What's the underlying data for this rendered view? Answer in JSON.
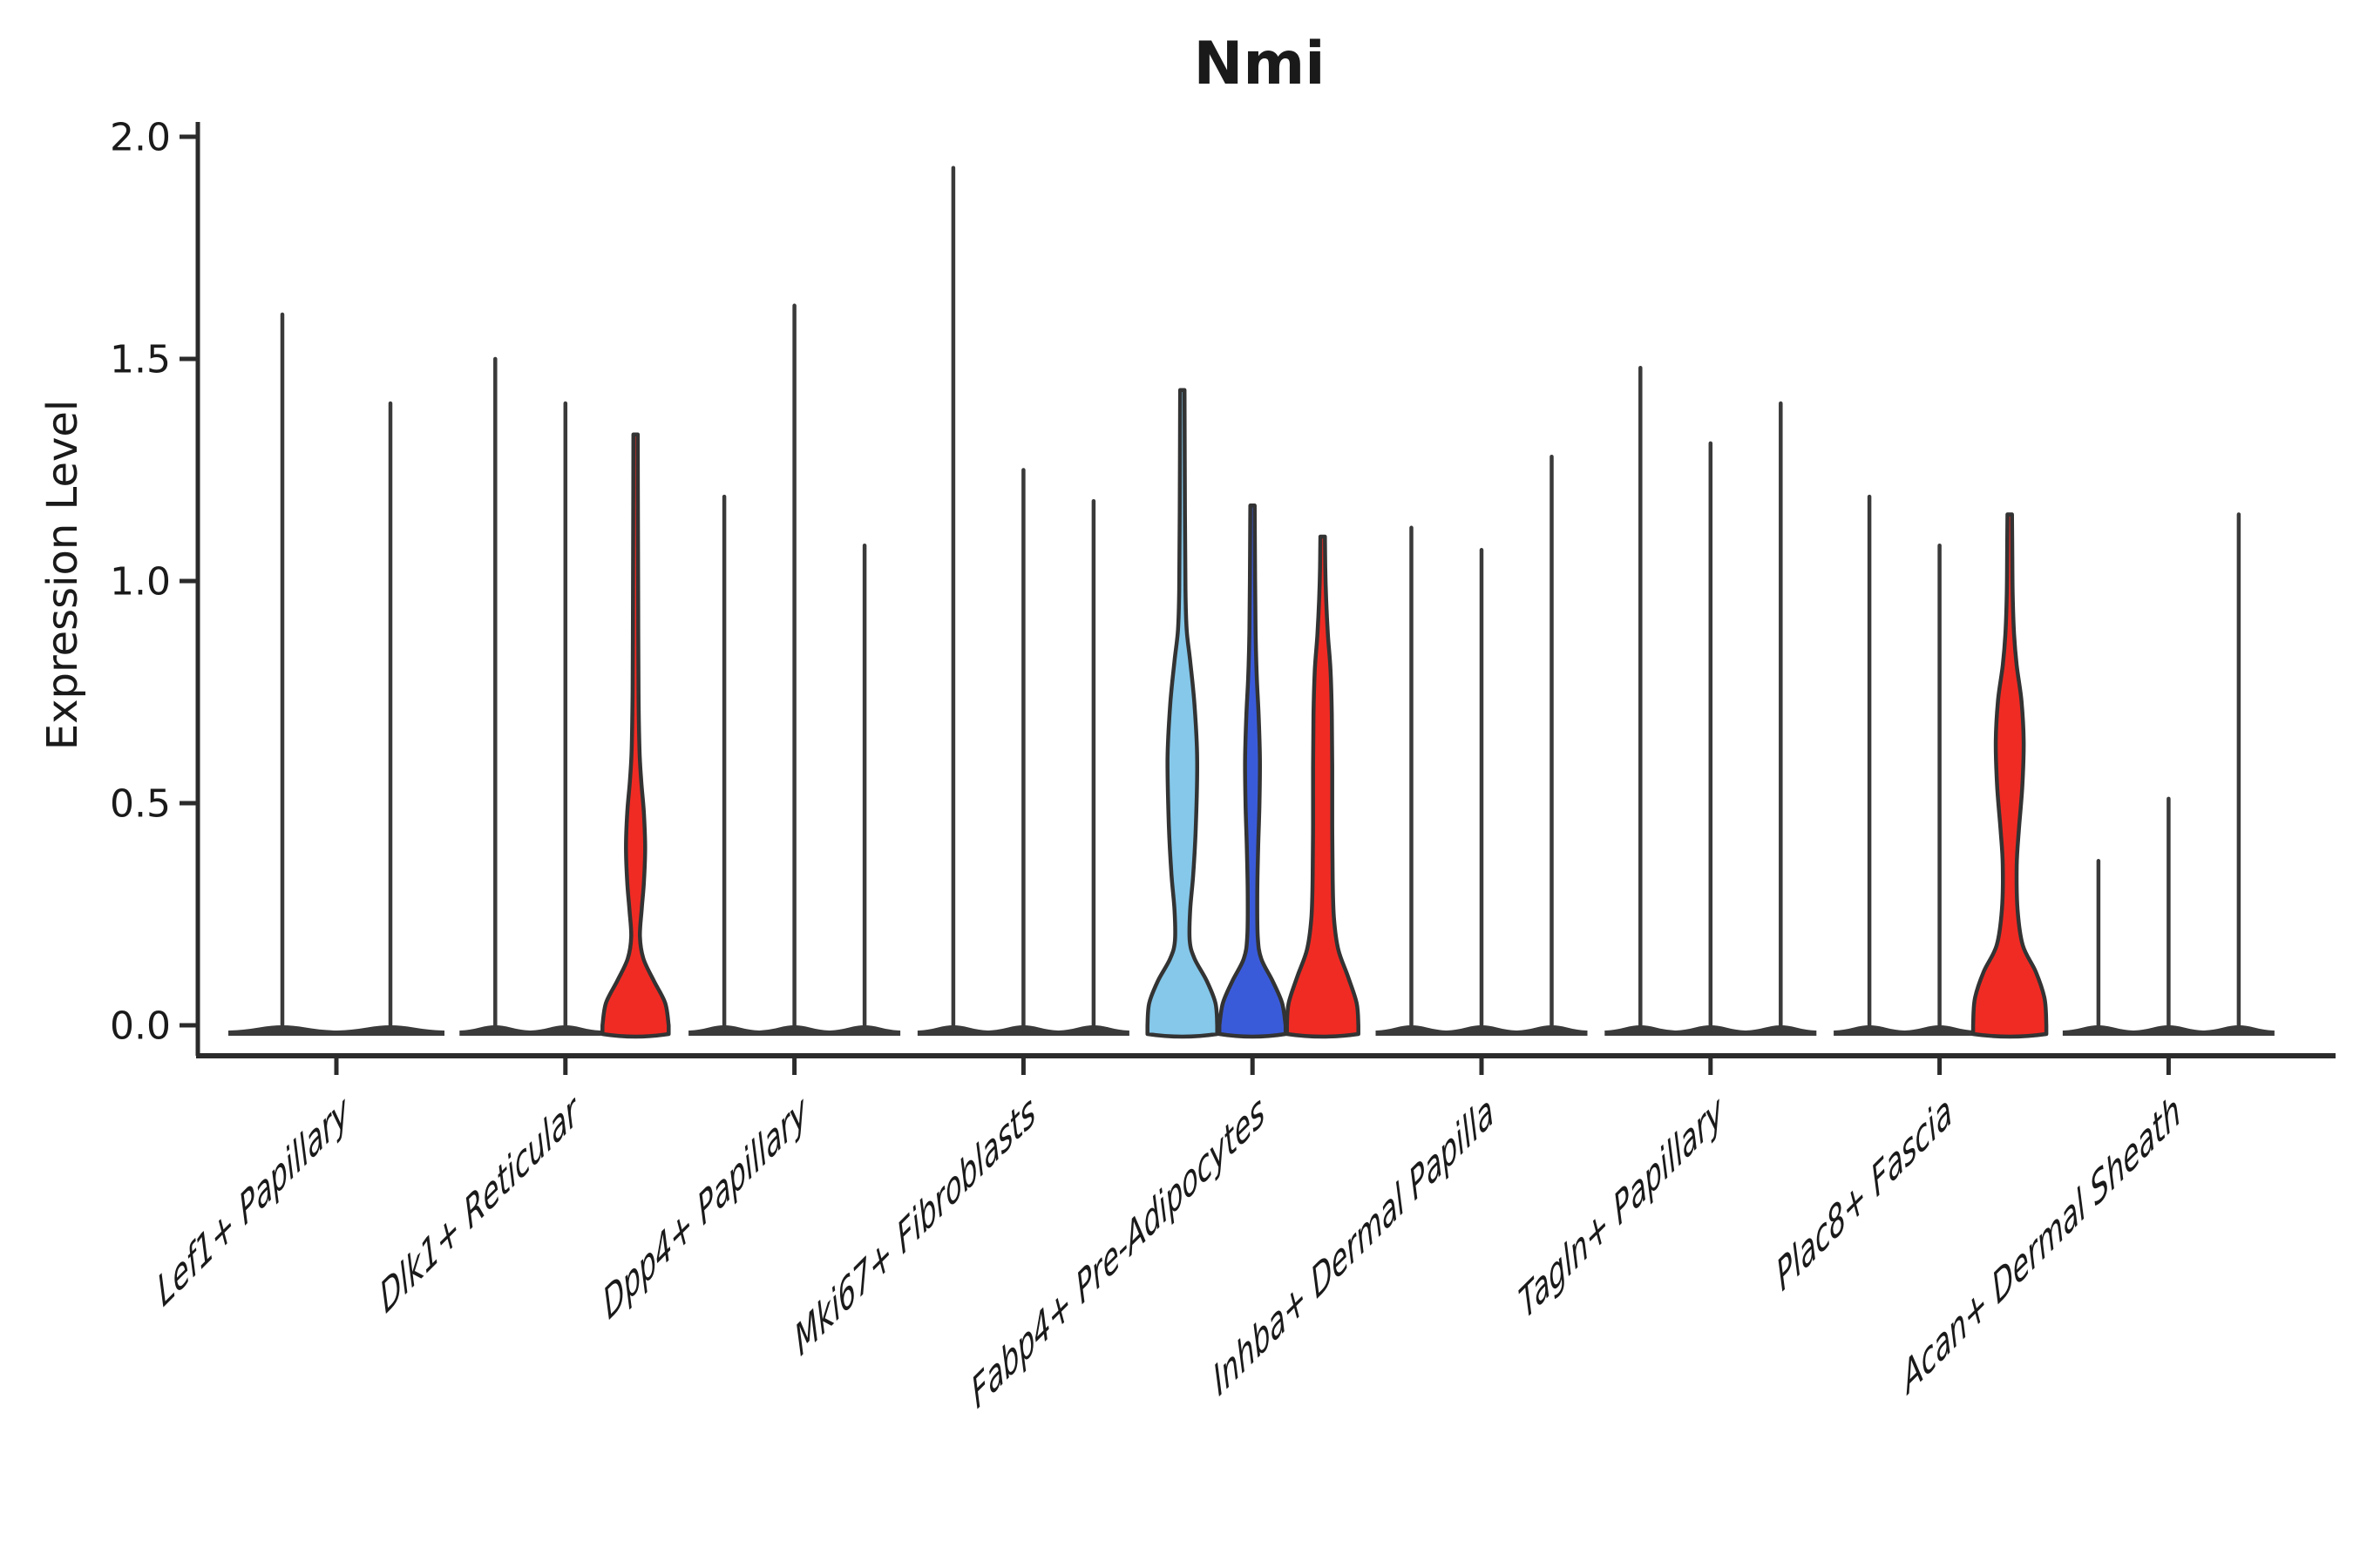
{
  "title": "Nmi",
  "chart_data": {
    "type": "violin",
    "title": "Nmi",
    "xlabel": "",
    "ylabel": "Expression Level",
    "ylim": [
      0.0,
      2.0
    ],
    "grid": false,
    "legend_position": "none",
    "y_ticks": [
      {
        "value": 0.0,
        "label": "0.0"
      },
      {
        "value": 0.5,
        "label": "0.5"
      },
      {
        "value": 1.0,
        "label": "1.0"
      },
      {
        "value": 1.5,
        "label": "1.5"
      },
      {
        "value": 2.0,
        "label": "2.0"
      }
    ],
    "categories": [
      "Lef1+ Papillary",
      "Dlk1+ Reticular",
      "Dpp4+ Papillary",
      "Mki67+ Fibroblasts",
      "Fabp4+ Pre-Adipocytes",
      "Inhba+ Dermal Papilla",
      "Tagln+ Papillary",
      "Plac8+ Fascia",
      "Acan+ Dermal Sheath"
    ],
    "palette": {
      "highlight_skyblue": "#85C8EA",
      "highlight_blue": "#3A5BD9",
      "highlight_red": "#F02B24",
      "violin_line": "#333333",
      "thin_violin": "#3A3A3A",
      "axis": "#2B2B2B",
      "text": "#1A1A1A"
    },
    "groups": [
      {
        "category": "Lef1+ Papillary",
        "violins": [
          {
            "peak": 1.6,
            "fill": null
          },
          {
            "peak": 1.4,
            "fill": null
          }
        ]
      },
      {
        "category": "Dlk1+ Reticular",
        "violins": [
          {
            "peak": 1.5,
            "fill": null
          },
          {
            "peak": 1.4,
            "fill": null
          },
          {
            "peak": 1.33,
            "fill": "#F02B24",
            "profile": [
              [
                0,
                38
              ],
              [
                0.05,
                34
              ],
              [
                0.1,
                21
              ],
              [
                0.15,
                9
              ],
              [
                0.2,
                5
              ],
              [
                0.26,
                7
              ],
              [
                0.32,
                9.5
              ],
              [
                0.4,
                11
              ],
              [
                0.48,
                9.5
              ],
              [
                0.55,
                6.5
              ],
              [
                0.62,
                4.5
              ],
              [
                0.75,
                3.4
              ],
              [
                0.95,
                3
              ],
              [
                1.15,
                2.7
              ],
              [
                1.33,
                2.5
              ]
            ]
          }
        ]
      },
      {
        "category": "Dpp4+ Papillary",
        "violins": [
          {
            "peak": 1.19,
            "fill": null
          },
          {
            "peak": 1.62,
            "fill": null
          },
          {
            "peak": 1.08,
            "fill": null
          }
        ]
      },
      {
        "category": "Mki67+ Fibroblasts",
        "violins": [
          {
            "peak": 1.93,
            "fill": null
          },
          {
            "peak": 1.25,
            "fill": null
          },
          {
            "peak": 1.18,
            "fill": null
          }
        ]
      },
      {
        "category": "Fabp4+ Pre-Adipocytes",
        "violins": [
          {
            "peak": 1.43,
            "fill": "#85C8EA",
            "profile": [
              [
                0,
                40
              ],
              [
                0.05,
                38
              ],
              [
                0.1,
                28
              ],
              [
                0.15,
                14
              ],
              [
                0.19,
                8.5
              ],
              [
                0.26,
                9
              ],
              [
                0.34,
                12.5
              ],
              [
                0.45,
                15.5
              ],
              [
                0.6,
                17
              ],
              [
                0.72,
                14
              ],
              [
                0.82,
                9
              ],
              [
                0.89,
                5
              ],
              [
                0.98,
                3.6
              ],
              [
                1.15,
                3
              ],
              [
                1.43,
                2.5
              ]
            ]
          },
          {
            "peak": 1.17,
            "fill": "#3A5BD9",
            "profile": [
              [
                0,
                38
              ],
              [
                0.05,
                34
              ],
              [
                0.1,
                23
              ],
              [
                0.15,
                10
              ],
              [
                0.2,
                6
              ],
              [
                0.3,
                5.5
              ],
              [
                0.4,
                6.5
              ],
              [
                0.5,
                8
              ],
              [
                0.6,
                8.5
              ],
              [
                0.7,
                7
              ],
              [
                0.78,
                5
              ],
              [
                0.88,
                3.6
              ],
              [
                1.0,
                3
              ],
              [
                1.17,
                2.5
              ]
            ]
          },
          {
            "peak": 1.1,
            "fill": "#F02B24",
            "profile": [
              [
                0,
                41
              ],
              [
                0.05,
                39
              ],
              [
                0.11,
                29
              ],
              [
                0.17,
                18
              ],
              [
                0.24,
                13
              ],
              [
                0.33,
                11.5
              ],
              [
                0.45,
                11
              ],
              [
                0.58,
                11
              ],
              [
                0.7,
                10.5
              ],
              [
                0.8,
                9
              ],
              [
                0.88,
                6
              ],
              [
                0.96,
                4
              ],
              [
                1.03,
                3
              ],
              [
                1.1,
                2.6
              ]
            ]
          }
        ]
      },
      {
        "category": "Inhba+ Dermal Papilla",
        "violins": [
          {
            "peak": 1.12,
            "fill": null
          },
          {
            "peak": 1.07,
            "fill": null
          },
          {
            "peak": 1.28,
            "fill": null
          }
        ]
      },
      {
        "category": "Tagln+ Papillary",
        "violins": [
          {
            "peak": 1.48,
            "fill": null
          },
          {
            "peak": 1.31,
            "fill": null
          },
          {
            "peak": 1.4,
            "fill": null
          }
        ]
      },
      {
        "category": "Plac8+ Fascia",
        "violins": [
          {
            "peak": 1.19,
            "fill": null
          },
          {
            "peak": 1.08,
            "fill": null
          },
          {
            "peak": 1.15,
            "fill": "#F02B24",
            "profile": [
              [
                0,
                42
              ],
              [
                0.06,
                40
              ],
              [
                0.12,
                30
              ],
              [
                0.18,
                15
              ],
              [
                0.26,
                9
              ],
              [
                0.36,
                8
              ],
              [
                0.44,
                10.5
              ],
              [
                0.54,
                14.5
              ],
              [
                0.64,
                16
              ],
              [
                0.73,
                13.5
              ],
              [
                0.81,
                8
              ],
              [
                0.88,
                5
              ],
              [
                0.97,
                3.4
              ],
              [
                1.05,
                3
              ],
              [
                1.15,
                2.6
              ]
            ]
          }
        ]
      },
      {
        "category": "Acan+ Dermal Sheath",
        "violins": [
          {
            "peak": 0.37,
            "fill": null
          },
          {
            "peak": 0.51,
            "fill": null
          },
          {
            "peak": 1.15,
            "fill": null
          }
        ]
      }
    ]
  }
}
